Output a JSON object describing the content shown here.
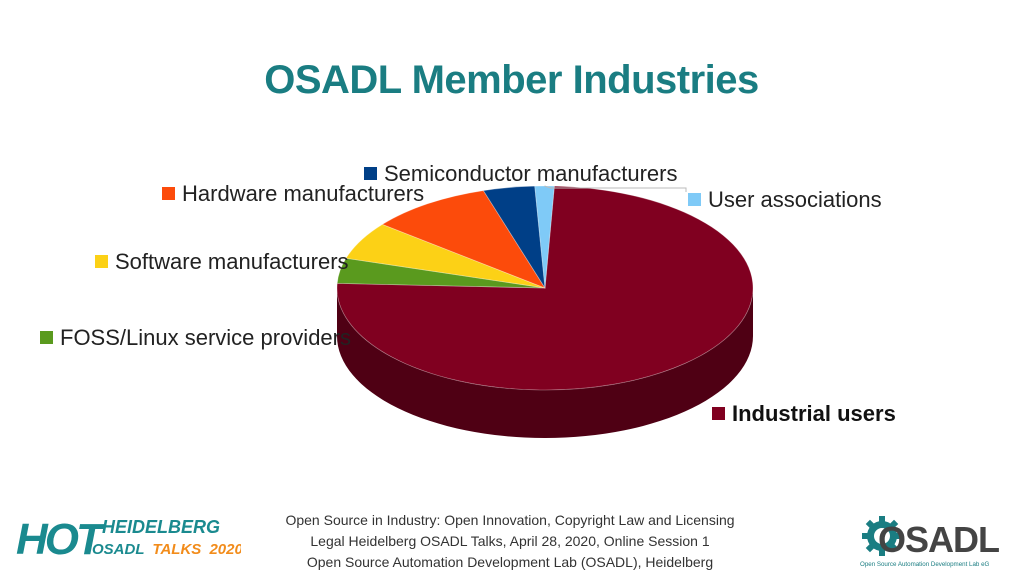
{
  "title": "OSADL Member Industries",
  "colors": {
    "title": "#1a7d82",
    "accent": "#1a7d82"
  },
  "chart_data": {
    "type": "pie",
    "title": "OSADL Member Industries",
    "three_d": true,
    "legend": "labels beside slices",
    "slices": [
      {
        "label": "Industrial users",
        "value": 75.0,
        "color": "#800020",
        "bold": true
      },
      {
        "label": "FOSS/Linux service providers",
        "value": 4.0,
        "color": "#5a9a1e",
        "bold": false
      },
      {
        "label": "Software manufacturers",
        "value": 6.0,
        "color": "#fcd116",
        "bold": false
      },
      {
        "label": "Hardware manufacturers",
        "value": 9.5,
        "color": "#fc4b0b",
        "bold": false
      },
      {
        "label": "Semiconductor manufacturers",
        "value": 4.0,
        "color": "#003f87",
        "bold": false
      },
      {
        "label": "User associations",
        "value": 1.5,
        "color": "#7fcaf7",
        "bold": false
      }
    ]
  },
  "footer": {
    "line1": "Open Source in Industry: Open Innovation, Copyright Law and Licensing",
    "line2": "Legal Heidelberg OSADL Talks, April 28, 2020, Online Session 1",
    "line3": "Open Source Automation Development Lab (OSADL), Heidelberg"
  },
  "hot_logo": {
    "mark": "HOT",
    "line1": "HEIDELBERG",
    "line2a": "OSADL",
    "line2b": "TALKS",
    "line2c": "2020",
    "colors": {
      "teal": "#1a8a8f",
      "orange": "#f28c1b"
    }
  },
  "osadl_logo": {
    "wordmark": "OSADL",
    "tagline": "Open Source Automation Development Lab eG",
    "colors": {
      "teal": "#1a7d82",
      "grey": "#444444"
    }
  }
}
